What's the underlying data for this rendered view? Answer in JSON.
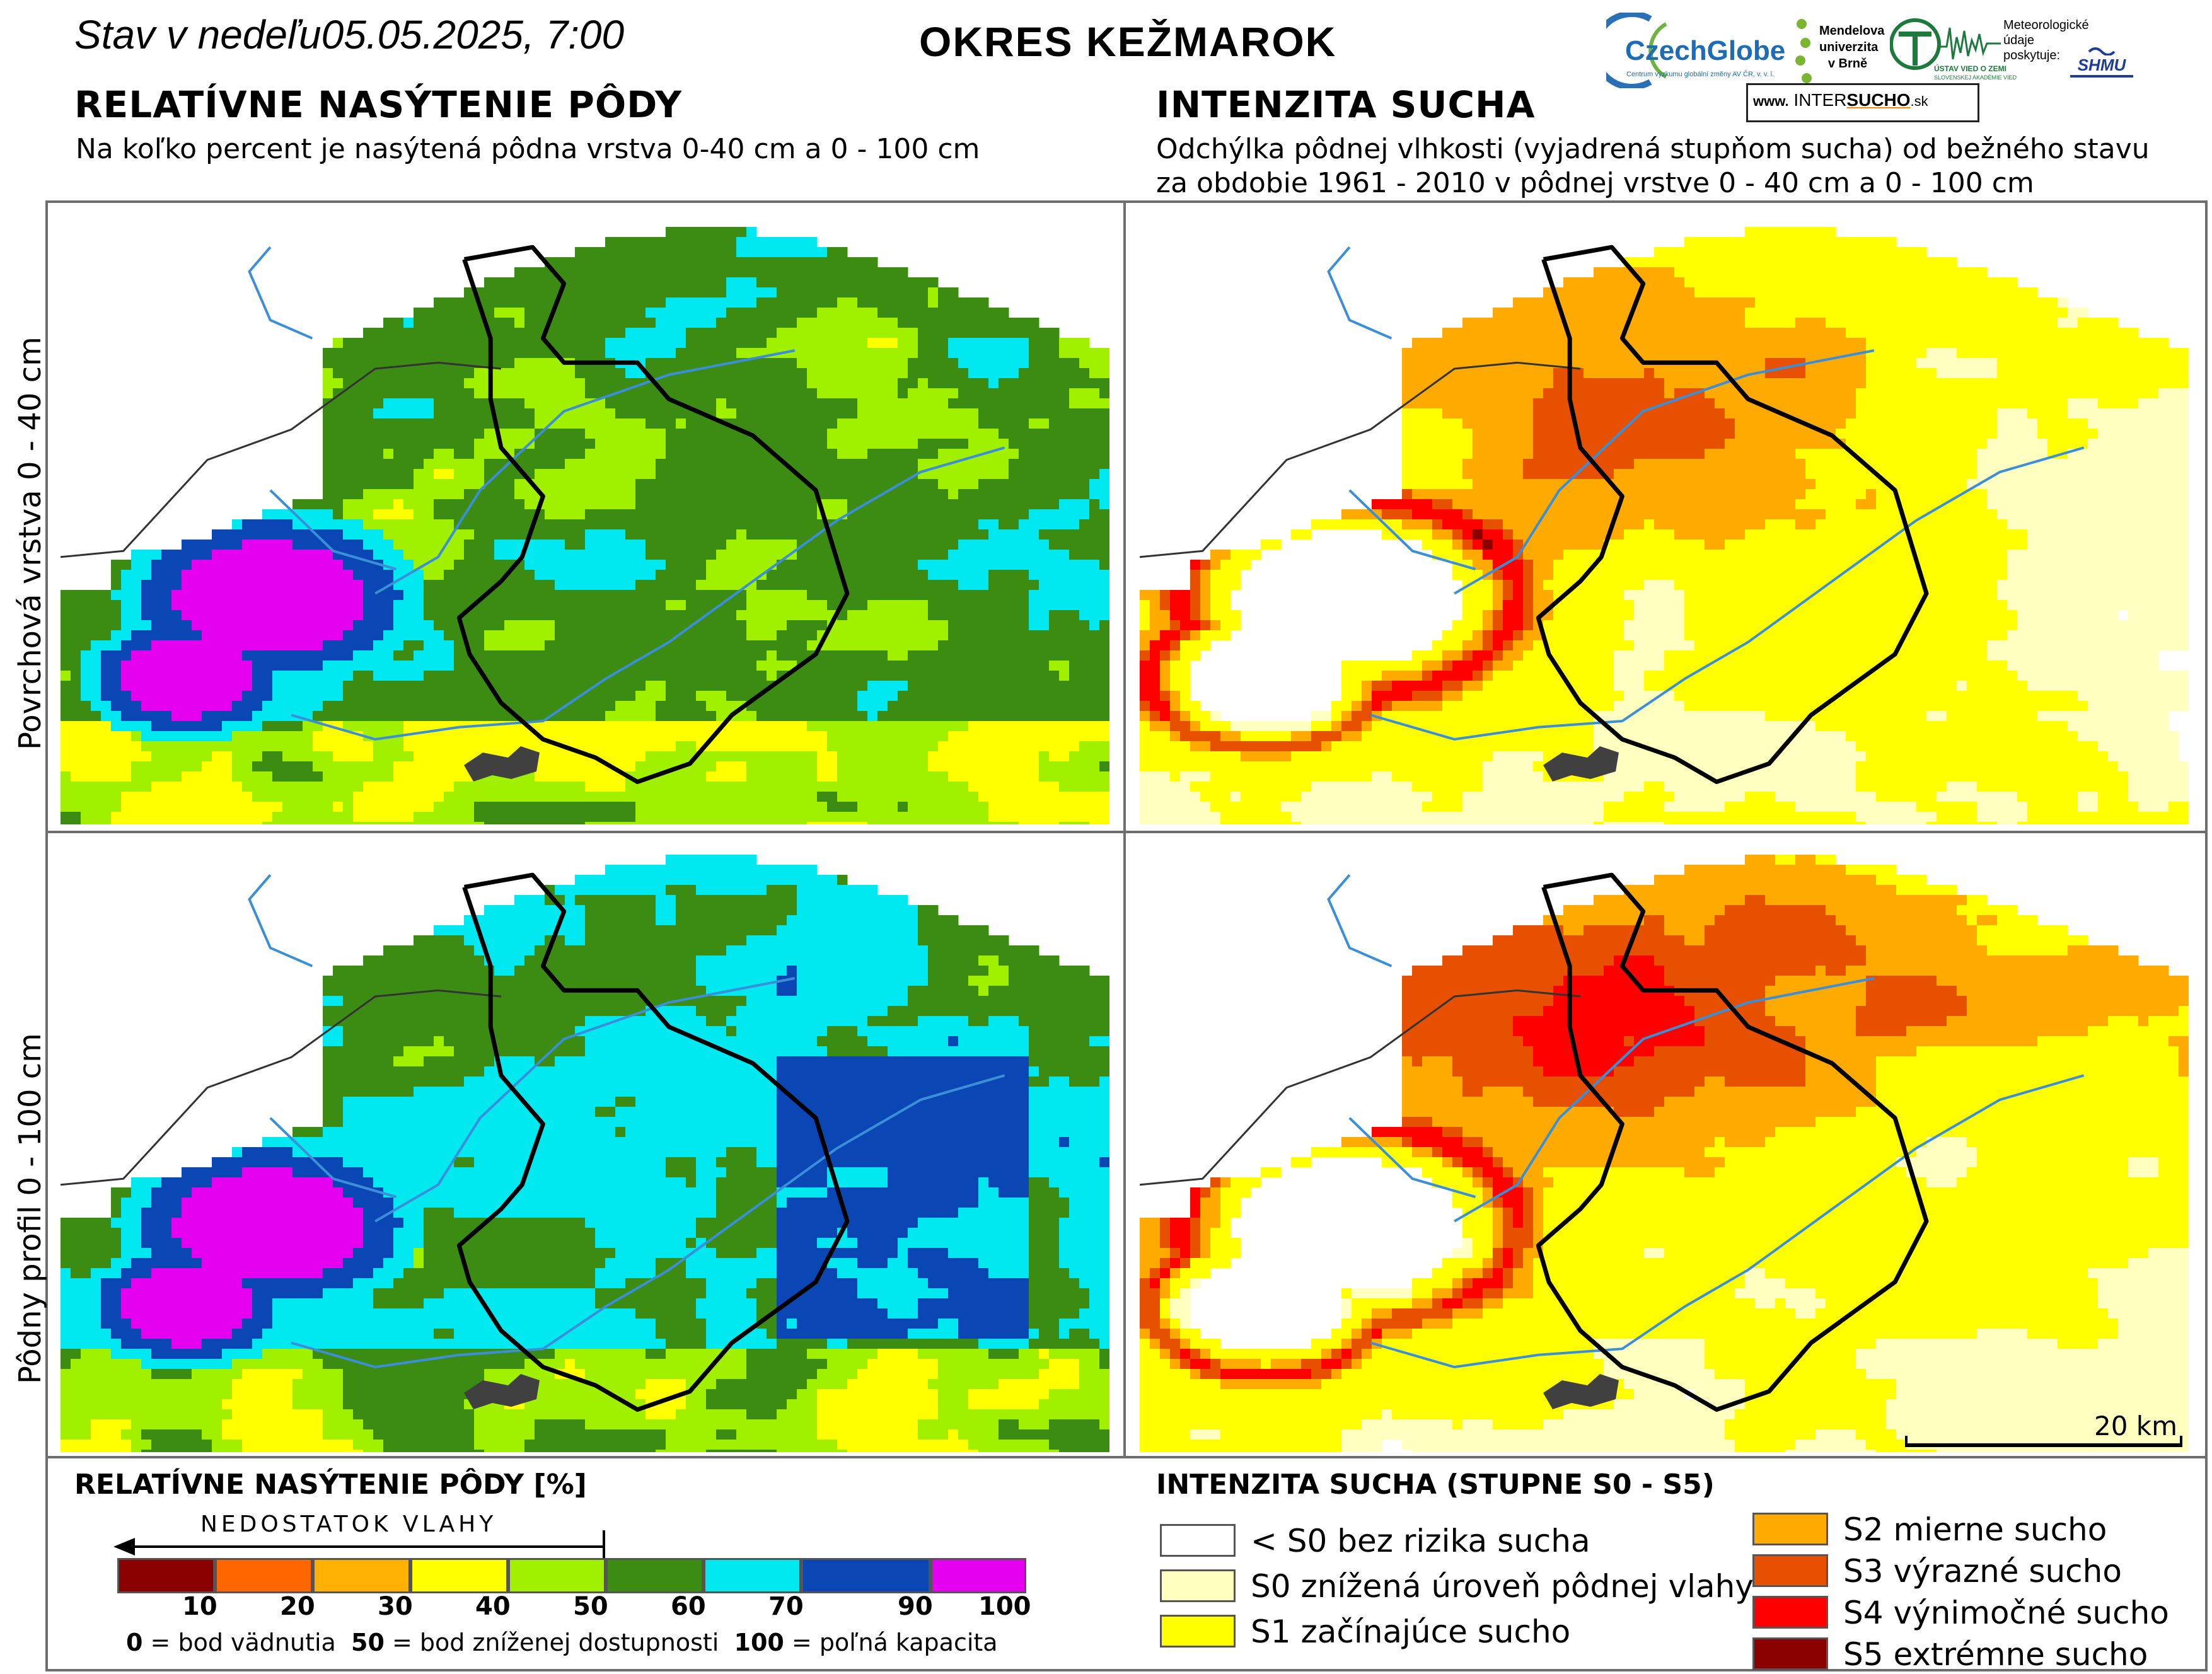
{
  "header": {
    "date_prefix": "Stav v nedeľu",
    "date_value": "05.05.2025, 7:00",
    "district": "OKRES KEŽMAROK"
  },
  "left_section": {
    "title": "RELATÍVNE NASÝTENIE PÔDY",
    "subtitle": "Na koľko percent je nasýtená pôdna vrstva 0-40 cm a 0 - 100 cm"
  },
  "right_section": {
    "title": "INTENZITA SUCHA",
    "subtitle_line1": "Odchýlka pôdnej vlhkosti (vyjadrená stupňom sucha) od bežného stavu",
    "subtitle_line2": "za obdobie 1961 - 2010 v pôdnej vrstve 0 - 40 cm a 0 - 100 cm"
  },
  "rows": {
    "top_label": "Povrchová vrstva 0 - 40 cm",
    "bottom_label": "Pôdny profil 0 - 100 cm"
  },
  "logos": {
    "czechglobe": "CzechGlobe",
    "czechglobe_sub": "Centrum výzkumu globální změny AV ČR, v. v. i.",
    "mendel_line1": "Mendelova",
    "mendel_line2": "univerzita",
    "mendel_line3": "v Brně",
    "uvoz": "ÚSTAV VIED O ZEMI",
    "uvoz_sub": "SLOVENSKEJ AKADÉMIE VIED",
    "meteo_line1": "Meteorologické",
    "meteo_line2": "údaje",
    "meteo_line3": "poskytuje:",
    "shmu": "SHMU",
    "intersucho_prefix": "www.",
    "intersucho_a": "INTER",
    "intersucho_b": "SUCHO",
    "intersucho_suffix": ".sk"
  },
  "scale_bar": {
    "label": "20 km",
    "distance_km": 20
  },
  "saturation_legend": {
    "title": "RELATÍVNE NASÝTENIE PÔDY [%]",
    "arrow_label": "NEDOSTATOK VLAHY",
    "classes": [
      {
        "upper": 10,
        "color": "#8b0000"
      },
      {
        "upper": 20,
        "color": "#ff6600"
      },
      {
        "upper": 30,
        "color": "#ffb000"
      },
      {
        "upper": 40,
        "color": "#ffff00"
      },
      {
        "upper": 50,
        "color": "#a0f000"
      },
      {
        "upper": 60,
        "color": "#3c8c14"
      },
      {
        "upper": 70,
        "color": "#00e8f0"
      },
      {
        "upper": 90,
        "color": "#0a46b4"
      },
      {
        "upper": 100,
        "color": "#e600f0"
      }
    ],
    "ticks": [
      "10",
      "20",
      "30",
      "40",
      "50",
      "60",
      "70",
      "90",
      "100"
    ],
    "note_0": "0",
    "note_0_text": " = bod vädnutia",
    "note_50": "50",
    "note_50_text": " = bod zníženej dostupnosti",
    "note_100": "100",
    "note_100_text": " = poľná kapacita"
  },
  "drought_legend": {
    "title": "INTENZITA SUCHA (STUPNE S0 - S5)",
    "classes": [
      {
        "label": "< S0 bez rizika sucha",
        "color": "#ffffff"
      },
      {
        "label": "S0 znížená úroveň pôdnej vlahy",
        "color": "#ffffc0"
      },
      {
        "label": "S1 začínajúce sucho",
        "color": "#ffff00"
      },
      {
        "label": "S2 mierne sucho",
        "color": "#ffaa00"
      },
      {
        "label": "S3 výrazné sucho",
        "color": "#e65000"
      },
      {
        "label": "S4 výnimočné sucho",
        "color": "#ff0000"
      },
      {
        "label": "S5 extrémne sucho",
        "color": "#8b0000"
      }
    ]
  }
}
